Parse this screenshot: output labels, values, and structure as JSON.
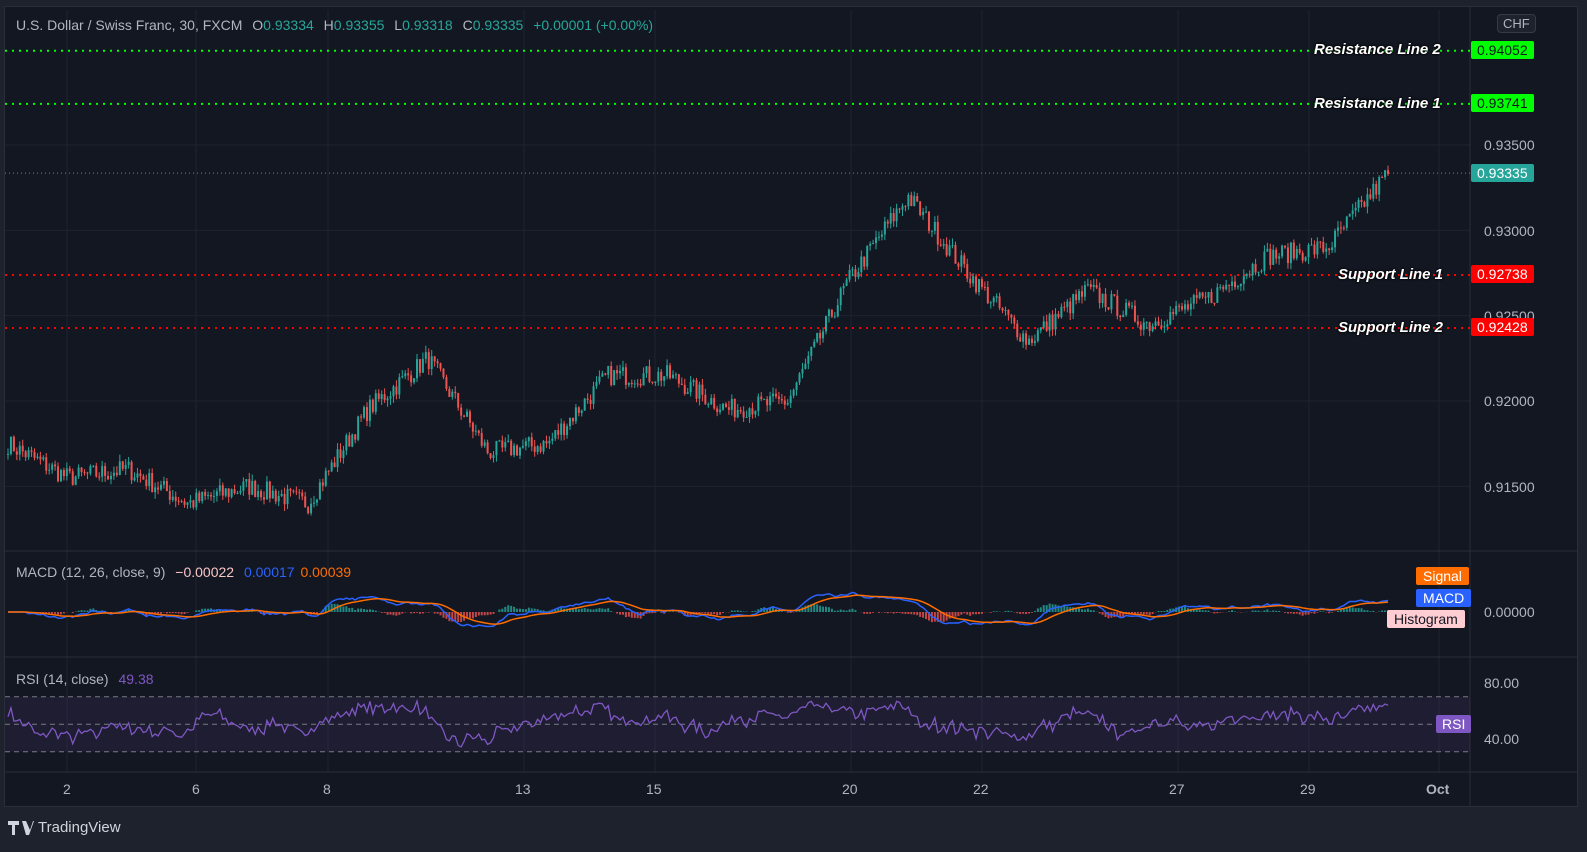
{
  "window": {
    "brand": "TradingView",
    "currency_button": "CHF"
  },
  "header": {
    "symbol": "U.S. Dollar / Swiss Franc, 30, FXCM",
    "open_label": "O",
    "open": "0.93334",
    "high_label": "H",
    "high": "0.93355",
    "low_label": "L",
    "low": "0.93318",
    "close_label": "C",
    "close": "0.93335",
    "change": "+0.00001 (+0.00%)"
  },
  "lines": {
    "resistance2": {
      "label": "Resistance Line 2",
      "value": "0.94052",
      "color": "#00ff00"
    },
    "resistance1": {
      "label": "Resistance Line 1",
      "value": "0.93741",
      "color": "#00ff00"
    },
    "support1": {
      "label": "Support Line 1",
      "value": "0.92738",
      "color": "#ff0000"
    },
    "support2": {
      "label": "Support Line 2",
      "value": "0.92428",
      "color": "#ff0000"
    },
    "last_price": {
      "value": "0.93335",
      "color": "#26a69a"
    }
  },
  "price_axis": [
    "0.93500",
    "0.93000",
    "0.92500",
    "0.92000",
    "0.91500"
  ],
  "macd": {
    "title": "MACD (12, 26, close, 9)",
    "histogram": "−0.00022",
    "macd": "0.00017",
    "signal": "0.00039",
    "badges": {
      "signal": "Signal",
      "macd": "MACD",
      "histogram": "Histogram"
    },
    "axis": "0.00000",
    "colors": {
      "macd": "#2962ff",
      "signal": "#ff6d00",
      "hist_pos": "#26a69a",
      "hist_neg": "#ef5350"
    }
  },
  "rsi": {
    "title": "RSI (14, close)",
    "value": "49.38",
    "badge": "RSI",
    "axis": [
      "80.00",
      "40.00"
    ],
    "color": "#7e57c2"
  },
  "time_axis": [
    "2",
    "6",
    "8",
    "13",
    "15",
    "20",
    "22",
    "27",
    "29",
    "Oct"
  ],
  "chart_data": {
    "type": "candlestick",
    "title": "U.S. Dollar / Swiss Franc, 30, FXCM",
    "xlabel": "",
    "ylabel": "CHF",
    "ylim": [
      0.911,
      0.942
    ],
    "x_ticks": [
      "2",
      "6",
      "8",
      "13",
      "15",
      "20",
      "22",
      "27",
      "29",
      "Oct"
    ],
    "y_ticks": [
      0.915,
      0.92,
      0.925,
      0.93,
      0.935
    ],
    "path": {
      "x": [
        "1",
        "2",
        "4",
        "5",
        "6",
        "7",
        "8",
        "9",
        "10",
        "12",
        "13",
        "14",
        "15",
        "16",
        "19",
        "20",
        "21",
        "22",
        "23",
        "26",
        "27",
        "28",
        "29",
        "30"
      ],
      "close": [
        0.9175,
        0.9155,
        0.916,
        0.914,
        0.915,
        0.914,
        0.9195,
        0.9225,
        0.917,
        0.9175,
        0.9215,
        0.9215,
        0.9195,
        0.92,
        0.927,
        0.932,
        0.9275,
        0.9235,
        0.9265,
        0.9245,
        0.926,
        0.9285,
        0.929,
        0.93335
      ]
    },
    "horizontal_lines": [
      {
        "name": "Resistance Line 2",
        "value": 0.94052
      },
      {
        "name": "Resistance Line 1",
        "value": 0.93741
      },
      {
        "name": "Support Line 1",
        "value": 0.92738
      },
      {
        "name": "Support Line 2",
        "value": 0.92428
      }
    ],
    "last": {
      "open": 0.93334,
      "high": 0.93355,
      "low": 0.93318,
      "close": 0.93335,
      "change": 1e-05
    },
    "indicators": {
      "macd": {
        "params": [
          12,
          26,
          "close",
          9
        ],
        "histogram": -0.00022,
        "macd": 0.00017,
        "signal": 0.00039
      },
      "rsi": {
        "params": [
          14,
          "close"
        ],
        "value": 49.38,
        "bands": [
          70,
          30
        ],
        "axis": [
          80,
          40
        ]
      }
    }
  }
}
